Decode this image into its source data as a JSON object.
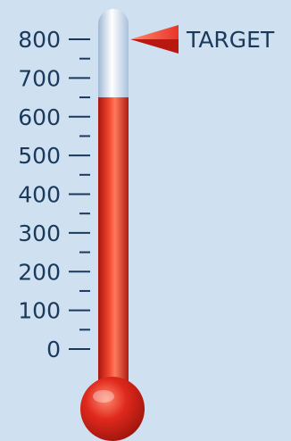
{
  "chart_data": {
    "type": "gauge",
    "ticks": [
      {
        "value": 0,
        "label": "0"
      },
      {
        "value": 100,
        "label": "100"
      },
      {
        "value": 200,
        "label": "200"
      },
      {
        "value": 300,
        "label": "300"
      },
      {
        "value": 400,
        "label": "400"
      },
      {
        "value": 500,
        "label": "500"
      },
      {
        "value": 600,
        "label": "600"
      },
      {
        "value": 700,
        "label": "700"
      },
      {
        "value": 800,
        "label": "800"
      }
    ],
    "range": [
      0,
      800
    ],
    "minor_ticks": true,
    "value": 650,
    "target": {
      "value": 800,
      "label": "TARGET"
    },
    "colors": {
      "fill": "#e0291d",
      "tube_empty": "#c8dcf2",
      "axis": "#1a3a5c",
      "background": "#cfe0f1",
      "marker": "#e8352a"
    }
  }
}
